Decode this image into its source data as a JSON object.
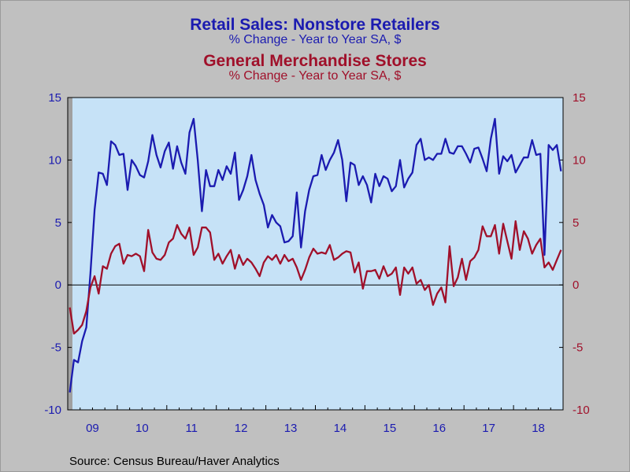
{
  "chart_data": {
    "type": "line",
    "title": "Retail Sales: Nonstore Retailers",
    "subtitle": "% Change - Year to Year    SA, $",
    "title2": "General Merchandise Stores",
    "subtitle2": "% Change - Year to Year    SA, $",
    "source": "Source:  Census Bureau/Haver Analytics",
    "ylim": [
      -10,
      15
    ],
    "yticks": [
      "15",
      "10",
      "5",
      "0",
      "-5",
      "-10"
    ],
    "xticks": [
      "09",
      "10",
      "11",
      "12",
      "13",
      "14",
      "15",
      "16",
      "17",
      "18"
    ],
    "x_start": "2009-01",
    "series": [
      {
        "name": "Retail Sales: Nonstore Retailers",
        "color": "#1b1bb0",
        "values": [
          -8.6,
          -6.0,
          -6.2,
          -4.5,
          -3.4,
          0.9,
          6.0,
          9.0,
          8.9,
          8.0,
          11.5,
          11.2,
          10.4,
          10.5,
          7.6,
          10.0,
          9.5,
          8.8,
          8.6,
          9.9,
          12.0,
          10.4,
          9.4,
          10.7,
          11.4,
          9.3,
          11.1,
          9.8,
          8.9,
          12.2,
          13.3,
          10.0,
          5.9,
          9.2,
          7.9,
          7.9,
          9.2,
          8.4,
          9.5,
          8.9,
          10.6,
          6.8,
          7.6,
          8.7,
          10.4,
          8.4,
          7.3,
          6.4,
          4.6,
          5.6,
          5.0,
          4.7,
          3.4,
          3.5,
          3.9,
          7.4,
          3.0,
          5.9,
          7.6,
          8.7,
          8.8,
          10.4,
          9.2,
          10.0,
          10.6,
          11.6,
          10.0,
          6.7,
          9.8,
          9.6,
          8.0,
          8.7,
          8.0,
          6.6,
          8.9,
          7.9,
          8.7,
          8.5,
          7.5,
          7.9,
          10.0,
          7.8,
          8.5,
          9.0,
          11.2,
          11.7,
          10.0,
          10.2,
          10.0,
          10.5,
          10.5,
          11.7,
          10.6,
          10.5,
          11.1,
          11.1,
          10.5,
          9.8,
          10.9,
          11.0,
          10.1,
          9.1,
          11.7,
          13.3,
          8.9,
          10.3,
          9.9,
          10.4,
          9.0,
          9.6,
          10.2,
          10.2,
          11.6,
          10.4,
          10.5,
          2.4,
          11.2,
          10.8,
          11.2,
          9.1
        ]
      },
      {
        "name": "General Merchandise Stores",
        "color": "#a0102a",
        "values": [
          -1.8,
          -3.9,
          -3.6,
          -3.2,
          -2.1,
          -0.2,
          0.7,
          -0.7,
          1.5,
          1.3,
          2.5,
          3.1,
          3.3,
          1.7,
          2.4,
          2.3,
          2.5,
          2.3,
          1.1,
          4.4,
          2.6,
          2.1,
          2.0,
          2.4,
          3.4,
          3.7,
          4.8,
          4.1,
          3.7,
          4.6,
          2.4,
          3.0,
          4.6,
          4.6,
          4.2,
          2.0,
          2.5,
          1.7,
          2.3,
          2.8,
          1.3,
          2.4,
          1.6,
          2.1,
          1.8,
          1.3,
          0.7,
          1.8,
          2.3,
          2.0,
          2.4,
          1.7,
          2.4,
          1.9,
          2.1,
          1.4,
          0.4,
          1.2,
          2.2,
          2.9,
          2.5,
          2.6,
          2.5,
          3.2,
          2.0,
          2.2,
          2.5,
          2.7,
          2.6,
          1.0,
          1.8,
          -0.3,
          1.1,
          1.1,
          1.2,
          0.5,
          1.5,
          0.7,
          0.9,
          1.4,
          -0.8,
          1.4,
          0.9,
          1.4,
          0.1,
          0.4,
          -0.4,
          0.0,
          -1.6,
          -0.7,
          -0.2,
          -1.4,
          3.1,
          -0.1,
          0.6,
          2.1,
          0.4,
          1.9,
          2.2,
          2.8,
          4.7,
          3.9,
          3.9,
          4.8,
          2.5,
          4.9,
          3.5,
          2.1,
          5.1,
          2.8,
          4.3,
          3.7,
          2.5,
          3.2,
          3.7,
          1.4,
          1.8,
          1.2,
          2.0,
          2.8
        ]
      }
    ]
  }
}
